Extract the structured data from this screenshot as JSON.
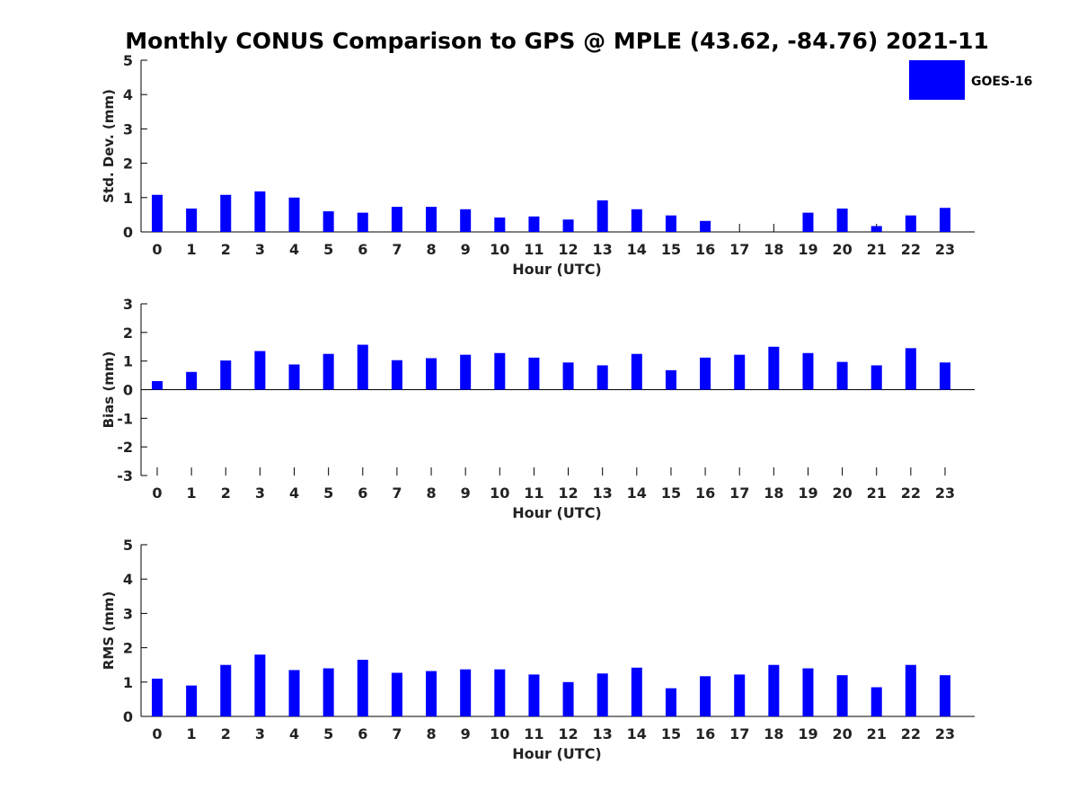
{
  "title": "Monthly CONUS Comparison to GPS @ MPLE (43.62, -84.76) 2021-11",
  "legend": {
    "label": "GOES-16",
    "color": "#0000ff",
    "placement": "top-right"
  },
  "chart_data": [
    {
      "type": "bar",
      "ylabel": "Std. Dev. (mm)",
      "xlabel": "Hour (UTC)",
      "ylim": [
        0,
        5
      ],
      "yticks": [
        0,
        1,
        2,
        3,
        4,
        5
      ],
      "categories": [
        "0",
        "1",
        "2",
        "3",
        "4",
        "5",
        "6",
        "7",
        "8",
        "9",
        "10",
        "11",
        "12",
        "13",
        "14",
        "15",
        "16",
        "17",
        "18",
        "19",
        "20",
        "21",
        "22",
        "23"
      ],
      "series": [
        {
          "name": "GOES-16",
          "values": [
            1.08,
            0.68,
            1.08,
            1.18,
            1.0,
            0.6,
            0.56,
            0.73,
            0.73,
            0.66,
            0.42,
            0.45,
            0.36,
            0.92,
            0.66,
            0.48,
            0.32,
            null,
            null,
            0.56,
            0.68,
            0.17,
            0.48,
            0.7
          ]
        }
      ]
    },
    {
      "type": "bar",
      "ylabel": "Bias (mm)",
      "xlabel": "Hour (UTC)",
      "ylim": [
        -3,
        3
      ],
      "yticks": [
        -3,
        -2,
        -1,
        0,
        1,
        2,
        3
      ],
      "categories": [
        "0",
        "1",
        "2",
        "3",
        "4",
        "5",
        "6",
        "7",
        "8",
        "9",
        "10",
        "11",
        "12",
        "13",
        "14",
        "15",
        "16",
        "17",
        "18",
        "19",
        "20",
        "21",
        "22",
        "23"
      ],
      "series": [
        {
          "name": "GOES-16",
          "values": [
            0.3,
            0.62,
            1.02,
            1.35,
            0.88,
            1.25,
            1.57,
            1.03,
            1.1,
            1.22,
            1.28,
            1.12,
            0.95,
            0.85,
            1.25,
            0.68,
            1.12,
            1.22,
            1.5,
            1.28,
            0.97,
            0.85,
            1.45,
            0.95
          ]
        }
      ]
    },
    {
      "type": "bar",
      "ylabel": "RMS (mm)",
      "xlabel": "Hour (UTC)",
      "ylim": [
        0,
        5
      ],
      "yticks": [
        0,
        1,
        2,
        3,
        4,
        5
      ],
      "categories": [
        "0",
        "1",
        "2",
        "3",
        "4",
        "5",
        "6",
        "7",
        "8",
        "9",
        "10",
        "11",
        "12",
        "13",
        "14",
        "15",
        "16",
        "17",
        "18",
        "19",
        "20",
        "21",
        "22",
        "23"
      ],
      "series": [
        {
          "name": "GOES-16",
          "values": [
            1.1,
            0.9,
            1.5,
            1.8,
            1.35,
            1.4,
            1.65,
            1.27,
            1.32,
            1.37,
            1.37,
            1.22,
            1.0,
            1.25,
            1.42,
            0.82,
            1.17,
            1.22,
            1.5,
            1.4,
            1.2,
            0.85,
            1.5,
            1.2
          ]
        }
      ]
    }
  ]
}
